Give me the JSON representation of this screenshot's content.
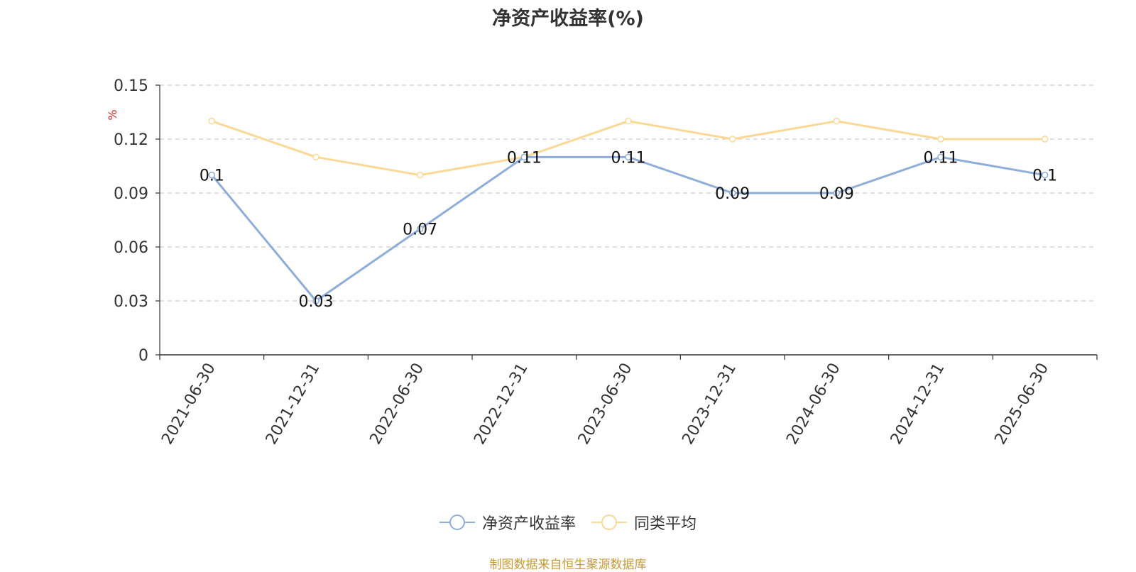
{
  "chart_data": {
    "type": "line",
    "title": "净资产收益率(%)",
    "ylabel": "%",
    "xlabel": "",
    "categories": [
      "2021-06-30",
      "2021-12-31",
      "2022-06-30",
      "2022-12-31",
      "2023-06-30",
      "2023-12-31",
      "2024-06-30",
      "2024-12-31",
      "2025-06-30"
    ],
    "yticks": [
      "0",
      "0.03",
      "0.06",
      "0.09",
      "0.12",
      "0.15"
    ],
    "ylim": [
      0,
      0.15
    ],
    "grid": true,
    "legend_position": "bottom",
    "series": [
      {
        "name": "净资产收益率",
        "color": "#8eaed9",
        "values": [
          0.1,
          0.03,
          0.07,
          0.11,
          0.11,
          0.09,
          0.09,
          0.11,
          0.1
        ],
        "show_labels": true
      },
      {
        "name": "同类平均",
        "color": "#fbd995",
        "values": [
          0.13,
          0.11,
          0.1,
          0.11,
          0.13,
          0.12,
          0.13,
          0.12,
          0.12
        ],
        "show_labels": false
      }
    ]
  },
  "source_text": "制图数据来自恒生聚源数据库"
}
